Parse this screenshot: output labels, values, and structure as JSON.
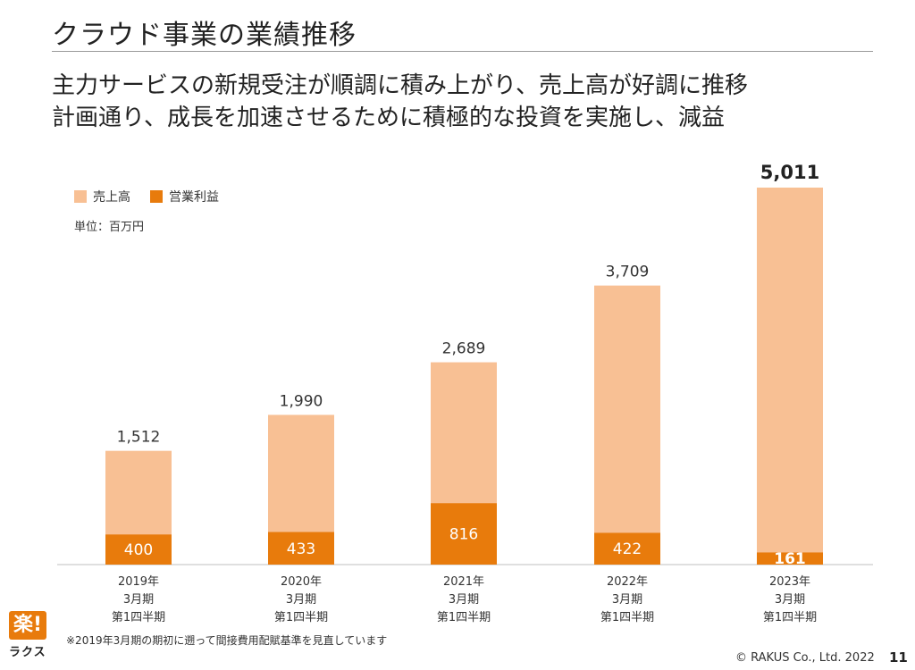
{
  "slide": {
    "title": "クラウド事業の業績推移",
    "subtitle_line1": "主力サービスの新規受注が順調に積み上がり、売上高が好調に推移",
    "subtitle_line2": "計画通り、成長を加速させるために積極的な投資を実施し、減益",
    "unit": "単位：百万円",
    "footnote": "※2019年3月期の期初に遡って間接費用配賦基準を見直しています",
    "copyright": "© RAKUS Co., Ltd. 2022",
    "page_number": "11",
    "logo_mark": "楽!",
    "logo_text": "ラクス"
  },
  "chart_data": {
    "type": "bar",
    "stacking": "overlay",
    "categories": [
      [
        "2019年",
        "3月期",
        "第1四半期"
      ],
      [
        "2020年",
        "3月期",
        "第1四半期"
      ],
      [
        "2021年",
        "3月期",
        "第1四半期"
      ],
      [
        "2022年",
        "3月期",
        "第1四半期"
      ],
      [
        "2023年",
        "3月期",
        "第1四半期"
      ]
    ],
    "series": [
      {
        "name": "売上高",
        "values": [
          1512,
          1990,
          2689,
          3709,
          5011
        ],
        "labels": [
          "1,512",
          "1,990",
          "2,689",
          "3,709",
          "5,011"
        ],
        "color": "#f8c094"
      },
      {
        "name": "営業利益",
        "values": [
          400,
          433,
          816,
          422,
          161
        ],
        "labels": [
          "400",
          "433",
          "816",
          "422",
          "161"
        ],
        "color": "#e87b0c"
      }
    ],
    "highlight_last_label": true,
    "legend_position": "top-left",
    "grid": false
  }
}
